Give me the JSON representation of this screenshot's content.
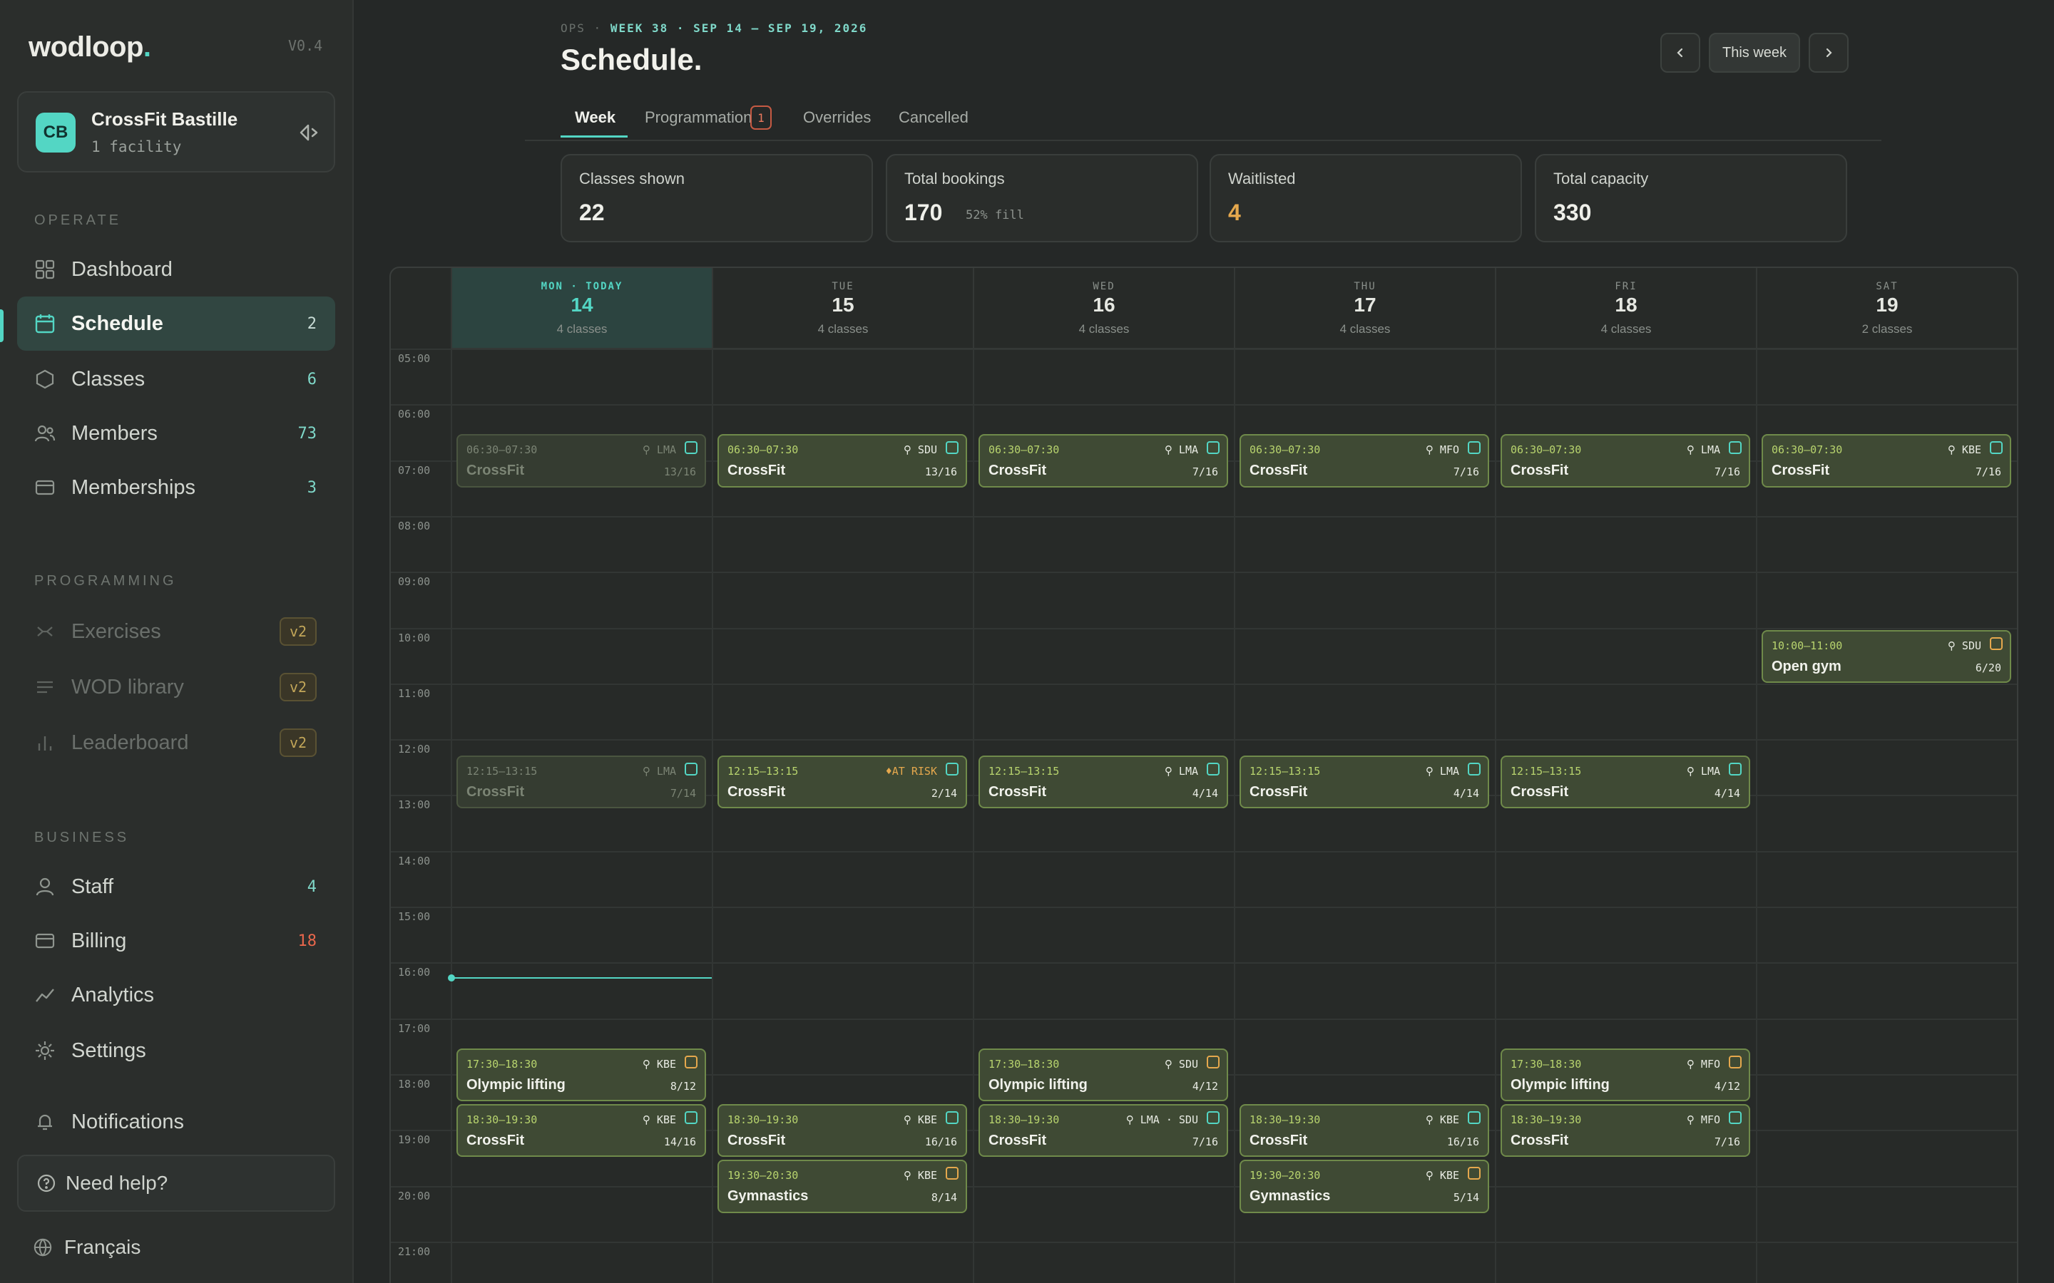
{
  "app": {
    "brand": "wodloop",
    "brand_dot": ".",
    "version": "V0.4"
  },
  "facility": {
    "initials": "CB",
    "name": "CrossFit Bastille",
    "sub": "1 facility"
  },
  "sidebar": {
    "sections": {
      "operate": "OPERATE",
      "programming": "PROGRAMMING",
      "business": "BUSINESS"
    },
    "items": [
      {
        "label": "Dashboard",
        "count": "",
        "icon": "grid-icon"
      },
      {
        "label": "Schedule",
        "count": "2",
        "icon": "calendar-icon"
      },
      {
        "label": "Classes",
        "count": "6",
        "icon": "hexagon-icon"
      },
      {
        "label": "Members",
        "count": "73",
        "icon": "users-icon"
      },
      {
        "label": "Memberships",
        "count": "3",
        "icon": "card-icon"
      },
      {
        "label": "Exercises",
        "badge": "v2",
        "icon": "dumbbell-icon"
      },
      {
        "label": "WOD library",
        "badge": "v2",
        "icon": "list-icon"
      },
      {
        "label": "Leaderboard",
        "badge": "v2",
        "icon": "bar-chart-icon"
      },
      {
        "label": "Staff",
        "count": "4",
        "icon": "person-icon"
      },
      {
        "label": "Billing",
        "count": "18",
        "icon": "billing-icon"
      },
      {
        "label": "Analytics",
        "count": "",
        "icon": "trend-icon"
      },
      {
        "label": "Settings",
        "count": "",
        "icon": "gear-icon"
      },
      {
        "label": "Notifications",
        "count": "",
        "icon": "bell-icon"
      }
    ],
    "help": "Need help?",
    "language": "Français"
  },
  "header": {
    "eyebrow_prefix": "OPS ·",
    "eyebrow_range": "WEEK 38 · SEP 14 – SEP 19, 2026",
    "title": "Schedule.",
    "this_week": "This week"
  },
  "tabs": [
    {
      "label": "Week"
    },
    {
      "label": "Programmation",
      "badge": "1"
    },
    {
      "label": "Overrides"
    },
    {
      "label": "Cancelled"
    }
  ],
  "stats": [
    {
      "label": "Classes shown",
      "value": "22",
      "sub": ""
    },
    {
      "label": "Total bookings",
      "value": "170",
      "sub": "52% fill"
    },
    {
      "label": "Waitlisted",
      "value": "4",
      "sub": ""
    },
    {
      "label": "Total capacity",
      "value": "330",
      "sub": ""
    }
  ],
  "calendar": {
    "hours": [
      "05:00",
      "06:00",
      "07:00",
      "08:00",
      "09:00",
      "10:00",
      "11:00",
      "12:00",
      "13:00",
      "14:00",
      "15:00",
      "16:00",
      "17:00",
      "18:00",
      "19:00",
      "20:00",
      "21:00"
    ],
    "days": [
      {
        "dow": "MON · TODAY",
        "num": "14",
        "count": "4 classes",
        "today": true
      },
      {
        "dow": "TUE",
        "num": "15",
        "count": "4 classes"
      },
      {
        "dow": "WED",
        "num": "16",
        "count": "4 classes"
      },
      {
        "dow": "THU",
        "num": "17",
        "count": "4 classes"
      },
      {
        "dow": "FRI",
        "num": "18",
        "count": "4 classes"
      },
      {
        "dow": "SAT",
        "num": "19",
        "count": "2 classes"
      }
    ],
    "events": [
      {
        "day": 0,
        "start": 6.5,
        "end": 7.5,
        "time": "06:30–07:30",
        "coach": "LMA",
        "name": "CrossFit",
        "cap": "13/16",
        "past": true,
        "status": "confirmed"
      },
      {
        "day": 0,
        "start": 12.25,
        "end": 13.25,
        "time": "12:15–13:15",
        "coach": "LMA",
        "name": "CrossFit",
        "cap": "7/14",
        "past": true,
        "status": "confirmed"
      },
      {
        "day": 0,
        "start": 17.5,
        "end": 18.5,
        "time": "17:30–18:30",
        "coach": "KBE",
        "name": "Olympic lifting",
        "cap": "8/12",
        "status": "pending"
      },
      {
        "day": 0,
        "start": 18.5,
        "end": 19.5,
        "time": "18:30–19:30",
        "coach": "KBE",
        "name": "CrossFit",
        "cap": "14/16",
        "status": "confirmed"
      },
      {
        "day": 1,
        "start": 6.5,
        "end": 7.5,
        "time": "06:30–07:30",
        "coach": "SDU",
        "name": "CrossFit",
        "cap": "13/16",
        "status": "confirmed"
      },
      {
        "day": 1,
        "start": 12.25,
        "end": 13.25,
        "time": "12:15–13:15",
        "coach": "♦AT RISK",
        "risk": true,
        "name": "CrossFit",
        "cap": "2/14",
        "status": "confirmed"
      },
      {
        "day": 1,
        "start": 18.5,
        "end": 19.5,
        "time": "18:30–19:30",
        "coach": "KBE",
        "name": "CrossFit",
        "cap": "16/16",
        "status": "confirmed"
      },
      {
        "day": 1,
        "start": 19.5,
        "end": 20.5,
        "time": "19:30–20:30",
        "coach": "KBE",
        "name": "Gymnastics",
        "cap": "8/14",
        "status": "pending"
      },
      {
        "day": 2,
        "start": 6.5,
        "end": 7.5,
        "time": "06:30–07:30",
        "coach": "LMA",
        "name": "CrossFit",
        "cap": "7/16",
        "status": "confirmed"
      },
      {
        "day": 2,
        "start": 12.25,
        "end": 13.25,
        "time": "12:15–13:15",
        "coach": "LMA",
        "name": "CrossFit",
        "cap": "4/14",
        "status": "confirmed"
      },
      {
        "day": 2,
        "start": 17.5,
        "end": 18.5,
        "time": "17:30–18:30",
        "coach": "SDU",
        "name": "Olympic lifting",
        "cap": "4/12",
        "status": "pending"
      },
      {
        "day": 2,
        "start": 18.5,
        "end": 19.5,
        "time": "18:30–19:30",
        "coach": "LMA · SDU",
        "name": "CrossFit",
        "cap": "7/16",
        "status": "confirmed"
      },
      {
        "day": 3,
        "start": 6.5,
        "end": 7.5,
        "time": "06:30–07:30",
        "coach": "MFO",
        "name": "CrossFit",
        "cap": "7/16",
        "status": "confirmed"
      },
      {
        "day": 3,
        "start": 12.25,
        "end": 13.25,
        "time": "12:15–13:15",
        "coach": "LMA",
        "name": "CrossFit",
        "cap": "4/14",
        "status": "confirmed"
      },
      {
        "day": 3,
        "start": 18.5,
        "end": 19.5,
        "time": "18:30–19:30",
        "coach": "KBE",
        "name": "CrossFit",
        "cap": "16/16",
        "status": "confirmed"
      },
      {
        "day": 3,
        "start": 19.5,
        "end": 20.5,
        "time": "19:30–20:30",
        "coach": "KBE",
        "name": "Gymnastics",
        "cap": "5/14",
        "status": "pending"
      },
      {
        "day": 4,
        "start": 6.5,
        "end": 7.5,
        "time": "06:30–07:30",
        "coach": "LMA",
        "name": "CrossFit",
        "cap": "7/16",
        "status": "confirmed"
      },
      {
        "day": 4,
        "start": 12.25,
        "end": 13.25,
        "time": "12:15–13:15",
        "coach": "LMA",
        "name": "CrossFit",
        "cap": "4/14",
        "status": "confirmed"
      },
      {
        "day": 4,
        "start": 17.5,
        "end": 18.5,
        "time": "17:30–18:30",
        "coach": "MFO",
        "name": "Olympic lifting",
        "cap": "4/12",
        "status": "pending"
      },
      {
        "day": 4,
        "start": 18.5,
        "end": 19.5,
        "time": "18:30–19:30",
        "coach": "MFO",
        "name": "CrossFit",
        "cap": "7/16",
        "status": "confirmed"
      },
      {
        "day": 5,
        "start": 6.5,
        "end": 7.5,
        "time": "06:30–07:30",
        "coach": "KBE",
        "name": "CrossFit",
        "cap": "7/16",
        "status": "confirmed"
      },
      {
        "day": 5,
        "start": 10,
        "end": 11,
        "time": "10:00–11:00",
        "coach": "SDU",
        "name": "Open gym",
        "cap": "6/20",
        "status": "pending"
      }
    ],
    "now_hour": 16.25,
    "colors": {
      "accent": "#53d6c4",
      "event_border": "#6f8a4a",
      "event_bg": "#3f4a34",
      "at_risk": "#e5a84d",
      "alert": "#e9674c"
    }
  }
}
